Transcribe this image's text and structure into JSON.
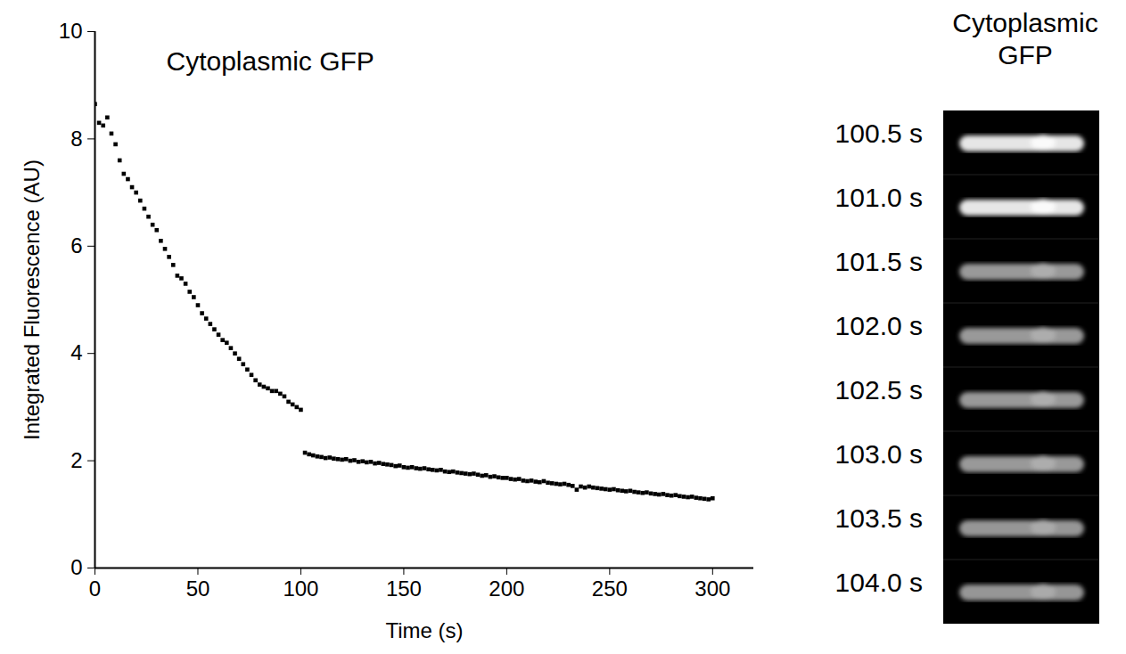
{
  "chart_data": {
    "type": "scatter",
    "title": "Cytoplasmic GFP",
    "x_label": "Time (s)",
    "y_label": "Integrated Fluorescence (AU)",
    "x": [
      0,
      2,
      4,
      6,
      8,
      10,
      12,
      14,
      16,
      18,
      20,
      22,
      24,
      26,
      28,
      30,
      32,
      34,
      36,
      38,
      40,
      42,
      44,
      46,
      48,
      50,
      52,
      54,
      56,
      58,
      60,
      62,
      64,
      66,
      68,
      70,
      72,
      74,
      76,
      78,
      80,
      82,
      84,
      86,
      88,
      90,
      92,
      94,
      96,
      98,
      100,
      102,
      104,
      106,
      108,
      110,
      112,
      114,
      116,
      118,
      120,
      122,
      124,
      126,
      128,
      130,
      132,
      134,
      136,
      138,
      140,
      142,
      144,
      146,
      148,
      150,
      152,
      154,
      156,
      158,
      160,
      162,
      164,
      166,
      168,
      170,
      172,
      174,
      176,
      178,
      180,
      182,
      184,
      186,
      188,
      190,
      192,
      194,
      196,
      198,
      200,
      202,
      204,
      206,
      208,
      210,
      212,
      214,
      216,
      218,
      220,
      222,
      224,
      226,
      228,
      230,
      232,
      234,
      236,
      238,
      240,
      242,
      244,
      246,
      248,
      250,
      252,
      254,
      256,
      258,
      260,
      262,
      264,
      266,
      268,
      270,
      272,
      274,
      276,
      278,
      280,
      282,
      284,
      286,
      288,
      290,
      292,
      294,
      296,
      298,
      300
    ],
    "values": [
      8.65,
      8.3,
      8.25,
      8.4,
      8.1,
      7.9,
      7.6,
      7.35,
      7.25,
      7.1,
      7.0,
      6.85,
      6.7,
      6.55,
      6.4,
      6.3,
      6.1,
      5.95,
      5.8,
      5.65,
      5.45,
      5.4,
      5.3,
      5.15,
      5.05,
      4.9,
      4.75,
      4.65,
      4.55,
      4.45,
      4.35,
      4.25,
      4.2,
      4.1,
      4.0,
      3.9,
      3.8,
      3.7,
      3.6,
      3.5,
      3.42,
      3.38,
      3.35,
      3.3,
      3.3,
      3.25,
      3.2,
      3.1,
      3.05,
      3.0,
      2.95,
      2.15,
      2.12,
      2.1,
      2.08,
      2.07,
      2.05,
      2.06,
      2.04,
      2.03,
      2.02,
      2.03,
      2.0,
      2.01,
      1.98,
      1.99,
      1.97,
      1.98,
      1.95,
      1.96,
      1.94,
      1.93,
      1.92,
      1.9,
      1.91,
      1.88,
      1.87,
      1.88,
      1.86,
      1.85,
      1.86,
      1.84,
      1.83,
      1.82,
      1.83,
      1.8,
      1.79,
      1.8,
      1.78,
      1.77,
      1.76,
      1.75,
      1.76,
      1.74,
      1.72,
      1.73,
      1.7,
      1.71,
      1.69,
      1.68,
      1.68,
      1.66,
      1.65,
      1.66,
      1.63,
      1.62,
      1.63,
      1.61,
      1.6,
      1.62,
      1.59,
      1.58,
      1.57,
      1.56,
      1.57,
      1.55,
      1.53,
      1.46,
      1.52,
      1.5,
      1.52,
      1.5,
      1.49,
      1.48,
      1.47,
      1.46,
      1.47,
      1.45,
      1.44,
      1.43,
      1.44,
      1.42,
      1.41,
      1.4,
      1.41,
      1.39,
      1.38,
      1.37,
      1.38,
      1.36,
      1.35,
      1.36,
      1.34,
      1.33,
      1.32,
      1.33,
      1.31,
      1.3,
      1.29,
      1.28,
      1.3
    ],
    "color": "#000000",
    "marker": "square",
    "xlim": [
      0,
      320
    ],
    "xticks": [
      0,
      50,
      100,
      150,
      200,
      250,
      300
    ],
    "ylim": [
      0,
      10
    ],
    "yticks": [
      0,
      2,
      4,
      6,
      8,
      10
    ],
    "grid": false
  },
  "image_panel": {
    "title": "Cytoplasmic GFP",
    "frames": [
      {
        "time": 100.5,
        "label": "100.5 s"
      },
      {
        "time": 101.0,
        "label": "101.0 s"
      },
      {
        "time": 101.5,
        "label": "101.5 s"
      },
      {
        "time": 102.0,
        "label": "102.0 s"
      },
      {
        "time": 102.5,
        "label": "102.5 s"
      },
      {
        "time": 103.0,
        "label": "103.0 s"
      },
      {
        "time": 103.5,
        "label": "103.5 s"
      },
      {
        "time": 104.0,
        "label": "104.0 s"
      }
    ]
  }
}
